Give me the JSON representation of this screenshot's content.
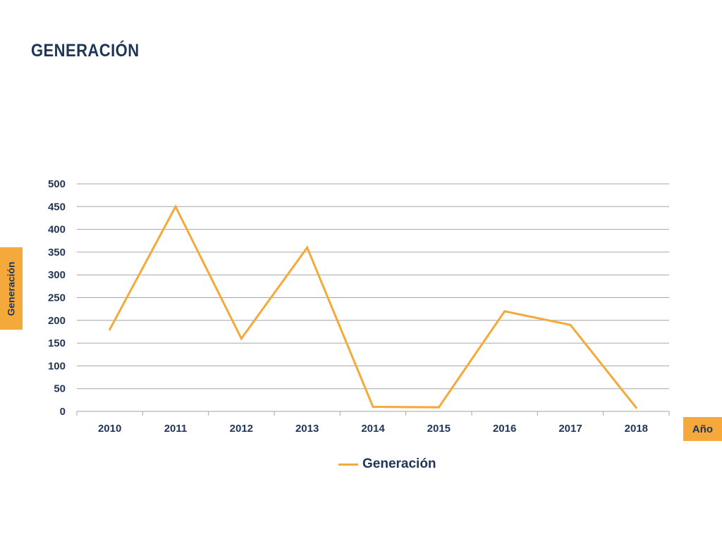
{
  "slide": {
    "title": "GENERACIÓN"
  },
  "axis_tags": {
    "y": "Generación",
    "x": "Año"
  },
  "colors": {
    "series": "#f6a93b",
    "text": "#1f3557",
    "grid": "#a6a6a6"
  },
  "chart_data": {
    "type": "line",
    "title": "",
    "xlabel": "Año",
    "ylabel": "Generación",
    "categories": [
      "2010",
      "2011",
      "2012",
      "2013",
      "2014",
      "2015",
      "2016",
      "2017",
      "2018"
    ],
    "series": [
      {
        "name": "Generación",
        "values": [
          180,
          450,
          160,
          360,
          10,
          9,
          220,
          190,
          8
        ]
      }
    ],
    "ylim": [
      0,
      500
    ],
    "yticks": [
      0,
      50,
      100,
      150,
      200,
      250,
      300,
      350,
      400,
      450,
      500
    ],
    "grid": true,
    "legend": "bottom"
  }
}
